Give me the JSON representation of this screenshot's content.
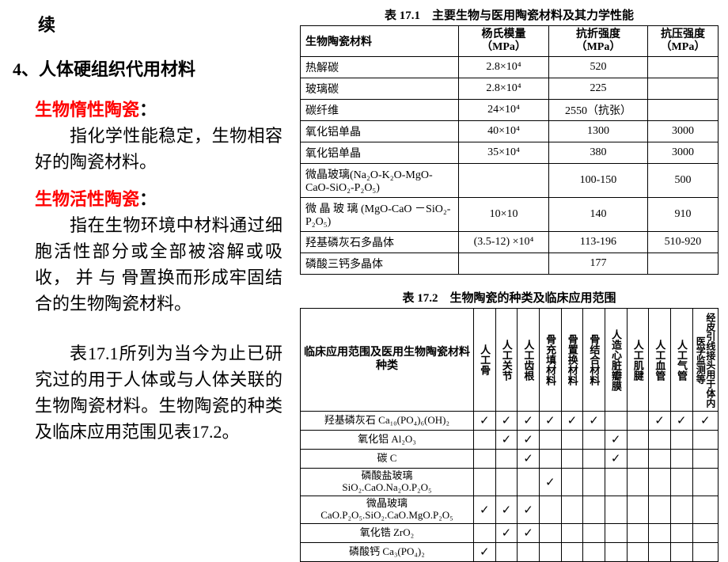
{
  "left": {
    "continued": "续",
    "section_title": "4、人体硬组织代用材料",
    "term1": "生物惰性陶瓷",
    "colon": "：",
    "para1": "指化学性能稳定，生物相容好的陶瓷材料。",
    "term2": "生物活性陶瓷",
    "para2": "指在生物环境中材料通过细胞活性部分或全部被溶解或吸收， 并 与 骨置换而形成牢固结合的生物陶瓷材料。",
    "para3": "表17.1所列为当今为止已研究过的用于人体或与人体关联的生物陶瓷材料。生物陶瓷的种类及临床应用范围见表17.2。"
  },
  "table1": {
    "caption": "表 17.1　主要生物与医用陶瓷材料及其力学性能",
    "headers": {
      "c1": "生物陶瓷材料",
      "c2a": "杨氏模量",
      "c2b": "（MPa）",
      "c3a": "抗折强度",
      "c3b": "（MPa）",
      "c4a": "抗压强度",
      "c4b": "（MPa）"
    },
    "rows": [
      {
        "name": "热解碳",
        "ym": "2.8×10⁴",
        "fl": "520",
        "co": ""
      },
      {
        "name": "玻璃碳",
        "ym": "2.8×10⁴",
        "fl": "225",
        "co": ""
      },
      {
        "name": "碳纤维",
        "ym": "24×10⁴",
        "fl": "2550（抗张）",
        "co": ""
      },
      {
        "name": "氧化铝单晶",
        "ym": "40×10⁴",
        "fl": "1300",
        "co": "3000"
      },
      {
        "name": "氧化铝单晶",
        "ym": "35×10⁴",
        "fl": "380",
        "co": "3000"
      },
      {
        "name": "微晶玻璃(Na₂O-K₂O-MgO-CaO-SiO₂-P₂O₅)",
        "ym": "",
        "fl": "100-150",
        "co": "500"
      },
      {
        "name": "微 晶  玻 璃  (MgO-CaO －SiO₂-P₂O₅)",
        "ym": "10×10",
        "fl": "140",
        "co": "910"
      },
      {
        "name": "羟基磷灰石多晶体",
        "ym": "(3.5-12) ×10⁴",
        "fl": "113-196",
        "co": "510-920"
      },
      {
        "name": "磷酸三钙多晶体",
        "ym": "",
        "fl": "177",
        "co": ""
      }
    ]
  },
  "table2": {
    "caption": "表 17.2　生物陶瓷的种类及临床应用范围",
    "rowhead": "临床应用范围及医用生物陶瓷材料种类",
    "cols": [
      "人工骨",
      "人工关节",
      "人工齿根",
      "骨充填材料",
      "骨置换材料",
      "骨结合材料",
      "人造心脏瓣膜",
      "人工肌腱",
      "人工血管",
      "人工气管",
      "经皮引线接头用于体内医学监测等"
    ],
    "materials": [
      {
        "name": "羟基磷灰石 Ca₁₀(PO₄)₆(OH)₂",
        "marks": [
          "✓",
          "✓",
          "✓",
          "✓",
          "✓",
          "✓",
          "",
          "",
          "✓",
          "✓",
          "✓"
        ]
      },
      {
        "name": "氧化铝 Al₂O₃",
        "marks": [
          "",
          "✓",
          "✓",
          "",
          "",
          "",
          "✓",
          "",
          "",
          "",
          ""
        ]
      },
      {
        "name": "碳 C",
        "marks": [
          "",
          "",
          "✓",
          "",
          "",
          "",
          "✓",
          "",
          "",
          "",
          ""
        ]
      },
      {
        "name": "磷酸盐玻璃\nSiO₂.CaO.Na₂O.P₂O₅",
        "marks": [
          "",
          "",
          "",
          "✓",
          "",
          "",
          "",
          "",
          "",
          "",
          ""
        ]
      },
      {
        "name": "微晶玻璃\nCaO.P₂O₅.SiO₂.CaO.MgO.P₂O₅",
        "marks": [
          "✓",
          "✓",
          "✓",
          "",
          "",
          "",
          "",
          "",
          "",
          "",
          ""
        ]
      },
      {
        "name": "氧化锆 ZrO₂",
        "marks": [
          "",
          "✓",
          "✓",
          "",
          "",
          "",
          "",
          "",
          "",
          "",
          ""
        ]
      },
      {
        "name": "磷酸钙 Ca₃(PO₄)₂",
        "marks": [
          "✓",
          "",
          "",
          "",
          "",
          "",
          "",
          "",
          "",
          "",
          ""
        ]
      }
    ]
  }
}
